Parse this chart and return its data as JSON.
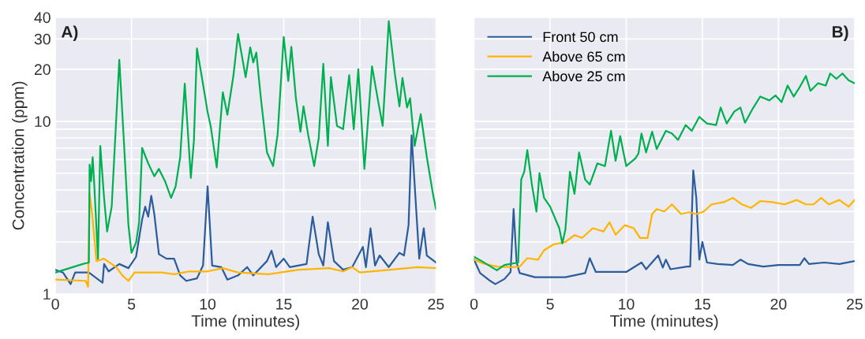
{
  "chart_data": [
    {
      "type": "line",
      "title": "A)",
      "xlabel": "Time (minutes)",
      "ylabel": "Concentration (ppm)",
      "log": "y",
      "grid": true,
      "xlim": [
        0,
        25
      ],
      "xticks": [
        0,
        5,
        10,
        15,
        20,
        25
      ],
      "ylim": [
        1,
        40
      ],
      "yticks": [
        1,
        {
          "value": 2,
          "label": null
        },
        {
          "value": 3,
          "label": null
        },
        {
          "value": 4,
          "label": null
        },
        {
          "value": 5,
          "label": null
        },
        {
          "value": 6,
          "label": null
        },
        {
          "value": 7,
          "label": null
        },
        {
          "value": 8,
          "label": null
        },
        {
          "value": 9,
          "label": null
        },
        10,
        20,
        30,
        40
      ],
      "series": [
        {
          "color": "#2b5c9c",
          "x": [
            0,
            0.5,
            1.0,
            1.3,
            2.2,
            3.1,
            3.2,
            3.5,
            4.2,
            4.8,
            5.3,
            5.7,
            5.9,
            6.1,
            6.3,
            6.5,
            6.8,
            7.3,
            7.8,
            8.2,
            8.6,
            9.3,
            9.7,
            10.0,
            10.3,
            10.9,
            11.3,
            12.0,
            12.6,
            13.0,
            13.9,
            14.2,
            14.5,
            15.0,
            15.4,
            16.5,
            16.9,
            17.3,
            17.6,
            17.9,
            18.3,
            18.9,
            19.5,
            20.2,
            20.4,
            20.7,
            21.0,
            21.3,
            21.9,
            22.6,
            22.9,
            23.2,
            23.4,
            23.7,
            23.9,
            24.2,
            24.4,
            25
          ],
          "values": [
            1.38,
            1.33,
            1.14,
            1.33,
            1.33,
            1.16,
            1.49,
            1.35,
            1.49,
            1.41,
            1.64,
            2.7,
            3.2,
            2.8,
            3.7,
            2.9,
            1.7,
            1.6,
            1.6,
            1.28,
            1.19,
            1.23,
            1.46,
            4.2,
            1.46,
            1.43,
            1.21,
            1.28,
            1.43,
            1.28,
            1.55,
            1.78,
            1.43,
            1.6,
            1.43,
            1.49,
            2.8,
            1.7,
            1.46,
            2.6,
            1.55,
            1.38,
            1.43,
            1.87,
            1.43,
            2.4,
            1.46,
            1.67,
            1.43,
            1.73,
            1.67,
            2.5,
            8.3,
            3.1,
            1.6,
            2.4,
            1.67,
            1.52
          ]
        },
        {
          "color": "#ffb400",
          "x": [
            0,
            2.0,
            2.15,
            2.25,
            2.4,
            2.7,
            3.2,
            4.0,
            4.4,
            4.8,
            5.2,
            6.0,
            7.0,
            7.8,
            8.8,
            10.0,
            11.0,
            12.0,
            14.0,
            16.0,
            18.0,
            18.9,
            19.5,
            20.0,
            22.0,
            23.8,
            25
          ],
          "values": [
            1.21,
            1.19,
            1.1,
            3.8,
            3.0,
            1.55,
            1.6,
            1.43,
            1.28,
            1.19,
            1.33,
            1.33,
            1.33,
            1.3,
            1.35,
            1.35,
            1.41,
            1.33,
            1.3,
            1.38,
            1.41,
            1.35,
            1.43,
            1.33,
            1.38,
            1.43,
            1.41
          ]
        },
        {
          "color": "#00b050",
          "x": [
            0,
            1.8,
            2.2,
            2.25,
            2.35,
            2.45,
            2.55,
            2.8,
            2.95,
            3.2,
            3.4,
            3.7,
            4.2,
            4.5,
            4.8,
            5.0,
            5.3,
            5.5,
            5.7,
            6.1,
            6.5,
            6.8,
            7.2,
            7.6,
            7.9,
            8.2,
            8.5,
            8.9,
            9.1,
            9.3,
            9.6,
            10.0,
            10.2,
            10.6,
            11.0,
            11.3,
            11.7,
            12.0,
            12.5,
            12.8,
            13.0,
            13.2,
            13.5,
            13.9,
            14.3,
            14.6,
            15.0,
            15.3,
            15.5,
            15.8,
            16.1,
            16.3,
            16.6,
            17.0,
            17.3,
            17.6,
            17.9,
            18.1,
            18.5,
            18.9,
            19.3,
            19.6,
            19.9,
            20.3,
            20.8,
            21.2,
            21.5,
            21.9,
            22.3,
            22.6,
            22.8,
            23.1,
            23.3,
            23.6,
            24.0,
            24.4,
            24.8,
            25
          ],
          "values": [
            1.33,
            1.49,
            1.52,
            5.6,
            4.5,
            6.2,
            4.4,
            1.6,
            7.2,
            3.6,
            2.3,
            3.2,
            22.7,
            7.7,
            2.5,
            1.73,
            1.98,
            2.6,
            7.0,
            5.7,
            4.8,
            5.3,
            4.5,
            3.6,
            4.2,
            6.2,
            16.5,
            4.7,
            7.7,
            26.4,
            18.5,
            11.3,
            9.4,
            5.4,
            14.7,
            10.9,
            18.5,
            32,
            18,
            26.8,
            21.9,
            25,
            13.6,
            6.6,
            5.5,
            8.4,
            30.8,
            17.1,
            27,
            13.6,
            8.7,
            12.2,
            8.4,
            5.5,
            8.0,
            21.5,
            7.2,
            18,
            9.4,
            9.0,
            18.5,
            9.0,
            20,
            5.3,
            20.8,
            13.1,
            9.4,
            38,
            18.8,
            12.2,
            17.8,
            12,
            13.6,
            7.2,
            11,
            6.2,
            3.8,
            3.1
          ]
        }
      ]
    },
    {
      "type": "line",
      "title": "B)",
      "xlabel": "Time (minutes)",
      "log": "y",
      "grid": true,
      "legend": "top left",
      "tick_labels": "x",
      "xlim": [
        0,
        25
      ],
      "xticks": [
        0,
        5,
        10,
        15,
        20,
        25
      ],
      "ylim": [
        1,
        40
      ],
      "yticks": [
        1,
        {
          "value": 2,
          "label": null
        },
        {
          "value": 3,
          "label": null
        },
        {
          "value": 4,
          "label": null
        },
        {
          "value": 5,
          "label": null
        },
        {
          "value": 6,
          "label": null
        },
        {
          "value": 7,
          "label": null
        },
        {
          "value": 8,
          "label": null
        },
        {
          "value": 9,
          "label": null
        },
        10,
        20,
        30,
        40
      ],
      "series": [
        {
          "name": "Front 50 cm",
          "color": "#2b5c9c",
          "x": [
            0,
            0.4,
            1.0,
            1.4,
            2.0,
            2.4,
            2.6,
            2.8,
            3.0,
            4.0,
            5.0,
            6.0,
            7.3,
            7.6,
            8.0,
            9.0,
            10.0,
            11.0,
            11.3,
            12.1,
            12.4,
            12.6,
            12.9,
            14.0,
            14.2,
            14.4,
            14.6,
            14.8,
            15.0,
            15.3,
            16.0,
            17.0,
            17.5,
            18.0,
            19.0,
            20.0,
            21.4,
            21.7,
            22.0,
            23.0,
            24.0,
            25
          ],
          "values": [
            1.58,
            1.32,
            1.2,
            1.14,
            1.22,
            1.34,
            3.1,
            1.52,
            1.32,
            1.25,
            1.25,
            1.25,
            1.32,
            1.61,
            1.34,
            1.34,
            1.34,
            1.52,
            1.39,
            1.67,
            1.42,
            1.58,
            1.39,
            1.44,
            1.44,
            5.2,
            3.6,
            1.58,
            2.0,
            1.52,
            1.49,
            1.47,
            1.58,
            1.49,
            1.44,
            1.47,
            1.47,
            1.61,
            1.49,
            1.52,
            1.49,
            1.55
          ]
        },
        {
          "name": "Above 65 cm",
          "color": "#ffb400",
          "x": [
            0,
            0.6,
            1.5,
            2.5,
            3.0,
            3.5,
            4.2,
            4.6,
            5.2,
            6.0,
            6.6,
            7.1,
            7.8,
            8.5,
            8.9,
            9.3,
            9.9,
            10.5,
            10.9,
            11.4,
            11.7,
            12.0,
            12.5,
            13.0,
            13.6,
            14.1,
            14.6,
            15.1,
            15.6,
            16.4,
            17.0,
            17.6,
            18.2,
            18.8,
            19.6,
            20.4,
            21.2,
            21.8,
            22.3,
            22.8,
            23.3,
            24.0,
            24.6,
            25
          ],
          "values": [
            1.58,
            1.5,
            1.44,
            1.43,
            1.44,
            1.61,
            1.58,
            1.79,
            1.93,
            2.0,
            2.19,
            2.11,
            2.4,
            2.3,
            2.6,
            2.2,
            2.5,
            2.4,
            2.11,
            2.11,
            2.9,
            3.1,
            3.0,
            3.3,
            2.9,
            2.97,
            2.9,
            3.0,
            3.3,
            3.4,
            3.6,
            3.3,
            3.15,
            3.45,
            3.4,
            3.3,
            3.5,
            3.3,
            3.3,
            3.6,
            3.3,
            3.5,
            3.2,
            3.5
          ]
        },
        {
          "name": "Above 25 cm",
          "color": "#00b050",
          "x": [
            0,
            0.5,
            1.5,
            2.0,
            2.9,
            3.1,
            3.3,
            3.5,
            3.8,
            4.1,
            4.3,
            4.6,
            5.0,
            5.6,
            5.8,
            6.0,
            6.3,
            6.6,
            6.9,
            7.3,
            7.6,
            8.1,
            8.6,
            9.0,
            9.3,
            9.6,
            10.0,
            10.6,
            10.8,
            11.0,
            11.3,
            11.7,
            12.0,
            12.6,
            13.0,
            13.4,
            13.9,
            14.3,
            14.8,
            15.3,
            15.9,
            16.2,
            16.6,
            17.1,
            17.5,
            17.8,
            18.3,
            18.8,
            19.4,
            19.8,
            20.2,
            20.6,
            21.0,
            21.4,
            21.8,
            22.1,
            22.6,
            23.1,
            23.4,
            23.8,
            24.2,
            24.6,
            25
          ],
          "values": [
            1.64,
            1.55,
            1.37,
            1.47,
            1.52,
            4.6,
            5.1,
            6.8,
            4.3,
            3.0,
            5.0,
            3.6,
            3.2,
            2.4,
            1.96,
            2.35,
            5.1,
            3.8,
            6.6,
            4.6,
            4.3,
            5.7,
            5.5,
            8.8,
            5.9,
            8.2,
            5.5,
            6.1,
            6.5,
            8.5,
            6.6,
            8.7,
            6.9,
            8.8,
            8.5,
            7.8,
            9.5,
            8.8,
            10.6,
            9.7,
            9.5,
            12.0,
            9.7,
            11.4,
            12,
            9.8,
            11.8,
            13.9,
            13.2,
            14.1,
            12.9,
            16.1,
            13.9,
            15.8,
            18.3,
            15,
            16.6,
            16.1,
            18.9,
            17.6,
            18.9,
            17.3,
            16.6
          ]
        }
      ]
    }
  ]
}
